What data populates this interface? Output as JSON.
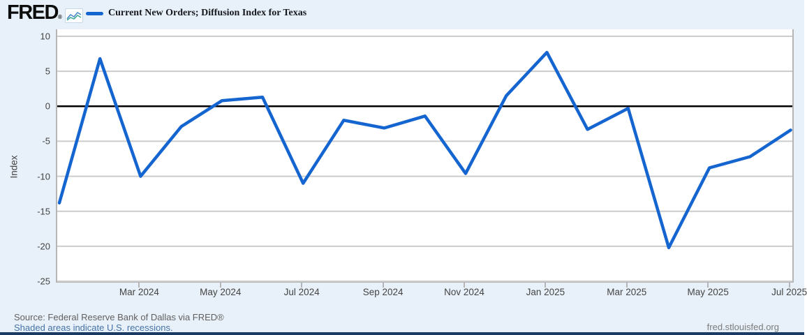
{
  "header": {
    "logo_text": "FRED",
    "logo_reg": "®",
    "legend_label": "Current New Orders; Diffusion Index for Texas"
  },
  "chart_data": {
    "type": "line",
    "title": "Current New Orders; Diffusion Index for Texas",
    "xlabel": "",
    "ylabel": "Index",
    "ylim": [
      -25,
      10
    ],
    "grid": true,
    "zero_line_black": true,
    "legend_position": "top-left",
    "line_color": "#1565d0",
    "x": [
      "Jan 2024",
      "Feb 2024",
      "Mar 2024",
      "Apr 2024",
      "May 2024",
      "Jun 2024",
      "Jul 2024",
      "Aug 2024",
      "Sep 2024",
      "Oct 2024",
      "Nov 2024",
      "Dec 2024",
      "Jan 2025",
      "Feb 2025",
      "Mar 2025",
      "Apr 2025",
      "May 2025",
      "Jun 2025",
      "Jul 2025"
    ],
    "values": [
      -13.8,
      6.8,
      -10.0,
      -2.9,
      0.8,
      1.3,
      -11.0,
      -2.0,
      -3.1,
      -1.4,
      -9.6,
      1.5,
      7.7,
      -3.3,
      -0.3,
      -20.2,
      -8.8,
      -7.2,
      -3.4
    ],
    "yticks": [
      10,
      5,
      0,
      -5,
      -10,
      -15,
      -20,
      -25
    ],
    "xtick_labels": [
      "Mar 2024",
      "May 2024",
      "Jul 2024",
      "Sep 2024",
      "Nov 2024",
      "Jan 2025",
      "Mar 2025",
      "May 2025",
      "Jul 2025"
    ]
  },
  "footer": {
    "source": "Source: Federal Reserve Bank of Dallas via FRED®",
    "recessions_note": "Shaded areas indicate U.S. recessions.",
    "site": "fred.stlouisfed.org"
  },
  "colors": {
    "page_bg": "#e8f1f9",
    "plot_bg": "#ffffff",
    "gridline": "#cccccc",
    "axis_border": "#b5b5b5",
    "zero_line": "#000000",
    "series_line": "#1565d0",
    "axis_text": "#444444",
    "source_text": "#606060",
    "link_text": "#4572a7",
    "bottom_bar": "#1b3a64"
  }
}
